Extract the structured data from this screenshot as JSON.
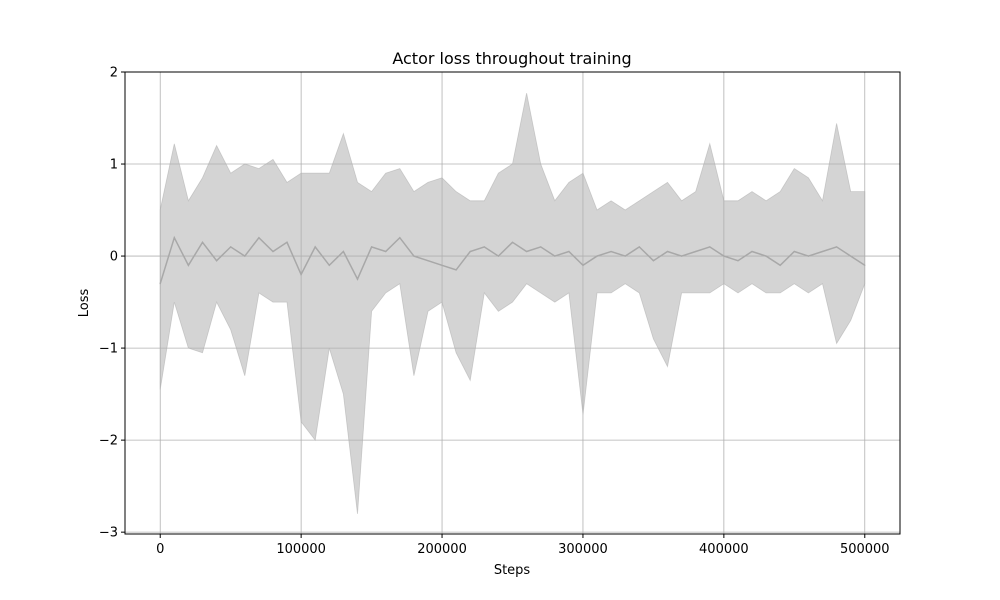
{
  "chart_data": {
    "type": "line",
    "title": "Actor loss throughout training",
    "xlabel": "Steps",
    "ylabel": "Loss",
    "xlim": [
      -25000,
      525000
    ],
    "ylim": [
      -3.02,
      2.0
    ],
    "x_ticks": [
      0,
      100000,
      200000,
      300000,
      400000,
      500000
    ],
    "x_tick_labels": [
      "0",
      "100000",
      "200000",
      "300000",
      "400000",
      "500000"
    ],
    "y_ticks": [
      -3,
      -2,
      -1,
      0,
      1,
      2
    ],
    "y_tick_labels": [
      "−3",
      "−2",
      "−1",
      "0",
      "1",
      "2"
    ],
    "grid": true,
    "legend": "none",
    "series": [
      {
        "color": "#b0b0b0",
        "style": "mean line with shaded min–max band",
        "x": [
          0,
          10000,
          20000,
          30000,
          40000,
          50000,
          60000,
          70000,
          80000,
          90000,
          100000,
          110000,
          120000,
          130000,
          140000,
          150000,
          160000,
          170000,
          180000,
          190000,
          200000,
          210000,
          220000,
          230000,
          240000,
          250000,
          260000,
          270000,
          280000,
          290000,
          300000,
          310000,
          320000,
          330000,
          340000,
          350000,
          360000,
          370000,
          380000,
          390000,
          400000,
          410000,
          420000,
          430000,
          440000,
          450000,
          460000,
          470000,
          480000,
          490000,
          500000
        ],
        "mean": [
          -0.3,
          0.2,
          -0.1,
          0.15,
          -0.05,
          0.1,
          0.0,
          0.2,
          0.05,
          0.15,
          -0.2,
          0.1,
          -0.1,
          0.05,
          -0.25,
          0.1,
          0.05,
          0.2,
          0.0,
          -0.05,
          -0.1,
          -0.15,
          0.05,
          0.1,
          0.0,
          0.15,
          0.05,
          0.1,
          0.0,
          0.05,
          -0.1,
          0.0,
          0.05,
          0.0,
          0.1,
          -0.05,
          0.05,
          0.0,
          0.05,
          0.1,
          0.0,
          -0.05,
          0.05,
          0.0,
          -0.1,
          0.05,
          0.0,
          0.05,
          0.1,
          0.0,
          -0.1
        ],
        "min": [
          -1.45,
          -0.5,
          -1.0,
          -1.05,
          -0.5,
          -0.8,
          -1.3,
          -0.4,
          -0.5,
          -0.5,
          -1.8,
          -2.0,
          -1.0,
          -1.5,
          -2.8,
          -0.6,
          -0.4,
          -0.3,
          -1.3,
          -0.6,
          -0.5,
          -1.05,
          -1.35,
          -0.4,
          -0.6,
          -0.5,
          -0.3,
          -0.4,
          -0.5,
          -0.4,
          -1.72,
          -0.4,
          -0.4,
          -0.3,
          -0.4,
          -0.9,
          -1.2,
          -0.4,
          -0.4,
          -0.4,
          -0.3,
          -0.4,
          -0.3,
          -0.4,
          -0.4,
          -0.3,
          -0.4,
          -0.3,
          -0.95,
          -0.7,
          -0.3
        ],
        "max": [
          0.5,
          1.22,
          0.6,
          0.85,
          1.2,
          0.9,
          1.0,
          0.95,
          1.05,
          0.8,
          0.9,
          0.9,
          0.9,
          1.33,
          0.8,
          0.7,
          0.9,
          0.95,
          0.7,
          0.8,
          0.85,
          0.7,
          0.6,
          0.6,
          0.9,
          1.0,
          1.77,
          1.0,
          0.6,
          0.8,
          0.9,
          0.5,
          0.6,
          0.5,
          0.6,
          0.7,
          0.8,
          0.6,
          0.7,
          1.22,
          0.6,
          0.6,
          0.7,
          0.6,
          0.7,
          0.95,
          0.85,
          0.6,
          1.44,
          0.7,
          0.7
        ]
      }
    ]
  }
}
